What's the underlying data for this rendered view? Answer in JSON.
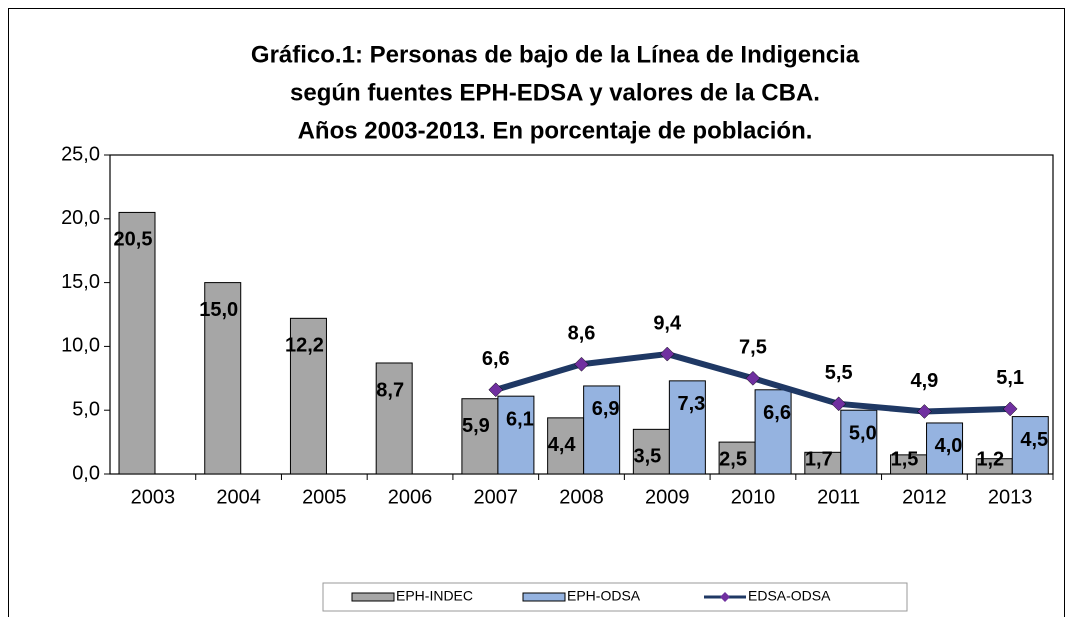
{
  "chart_data": {
    "type": "bar_line",
    "title": [
      "Gráfico.1: Personas de bajo de la Línea de Indigencia",
      "según fuentes EPH-EDSA y valores de la CBA.",
      "Años 2003-2013. En porcentaje de población."
    ],
    "categories": [
      "2003",
      "2004",
      "2005",
      "2006",
      "2007",
      "2008",
      "2009",
      "2010",
      "2011",
      "2012",
      "2013"
    ],
    "ylim": [
      0,
      25
    ],
    "yticks": [
      {
        "value": 0,
        "label": "0,0"
      },
      {
        "value": 5,
        "label": "5,0"
      },
      {
        "value": 10,
        "label": "10,0"
      },
      {
        "value": 15,
        "label": "15,0"
      },
      {
        "value": 20,
        "label": "20,0"
      },
      {
        "value": 25,
        "label": "25,0"
      }
    ],
    "grid": false,
    "legend": "bottom",
    "series": [
      {
        "name": "EPH-INDEC",
        "type": "bar",
        "color": "#a6a6a6",
        "values": [
          20.5,
          15.0,
          12.2,
          8.7,
          5.9,
          4.4,
          3.5,
          2.5,
          1.7,
          1.5,
          1.2
        ],
        "value_labels": [
          "20,5",
          "15,0",
          "12,2",
          "8,7",
          "5,9",
          "4,4",
          "3,5",
          "2,5",
          "1,7",
          "1,5",
          "1,2"
        ]
      },
      {
        "name": "EPH-ODSA",
        "type": "bar",
        "color": "#95b3e0",
        "values": [
          null,
          null,
          null,
          null,
          6.1,
          6.9,
          7.3,
          6.6,
          5.0,
          4.0,
          4.5
        ],
        "value_labels": [
          null,
          null,
          null,
          null,
          "6,1",
          "6,9",
          "7,3",
          "6,6",
          "5,0",
          "4,0",
          "4,5"
        ]
      },
      {
        "name": "EDSA-ODSA",
        "type": "line",
        "color": "#1f3864",
        "marker_color": "#7030a0",
        "values": [
          null,
          null,
          null,
          null,
          6.6,
          8.6,
          9.4,
          7.5,
          5.5,
          4.9,
          5.1
        ],
        "value_labels": [
          null,
          null,
          null,
          null,
          "6,6",
          "8,6",
          "9,4",
          "7,5",
          "5,5",
          "4,9",
          "5,1"
        ]
      }
    ]
  }
}
